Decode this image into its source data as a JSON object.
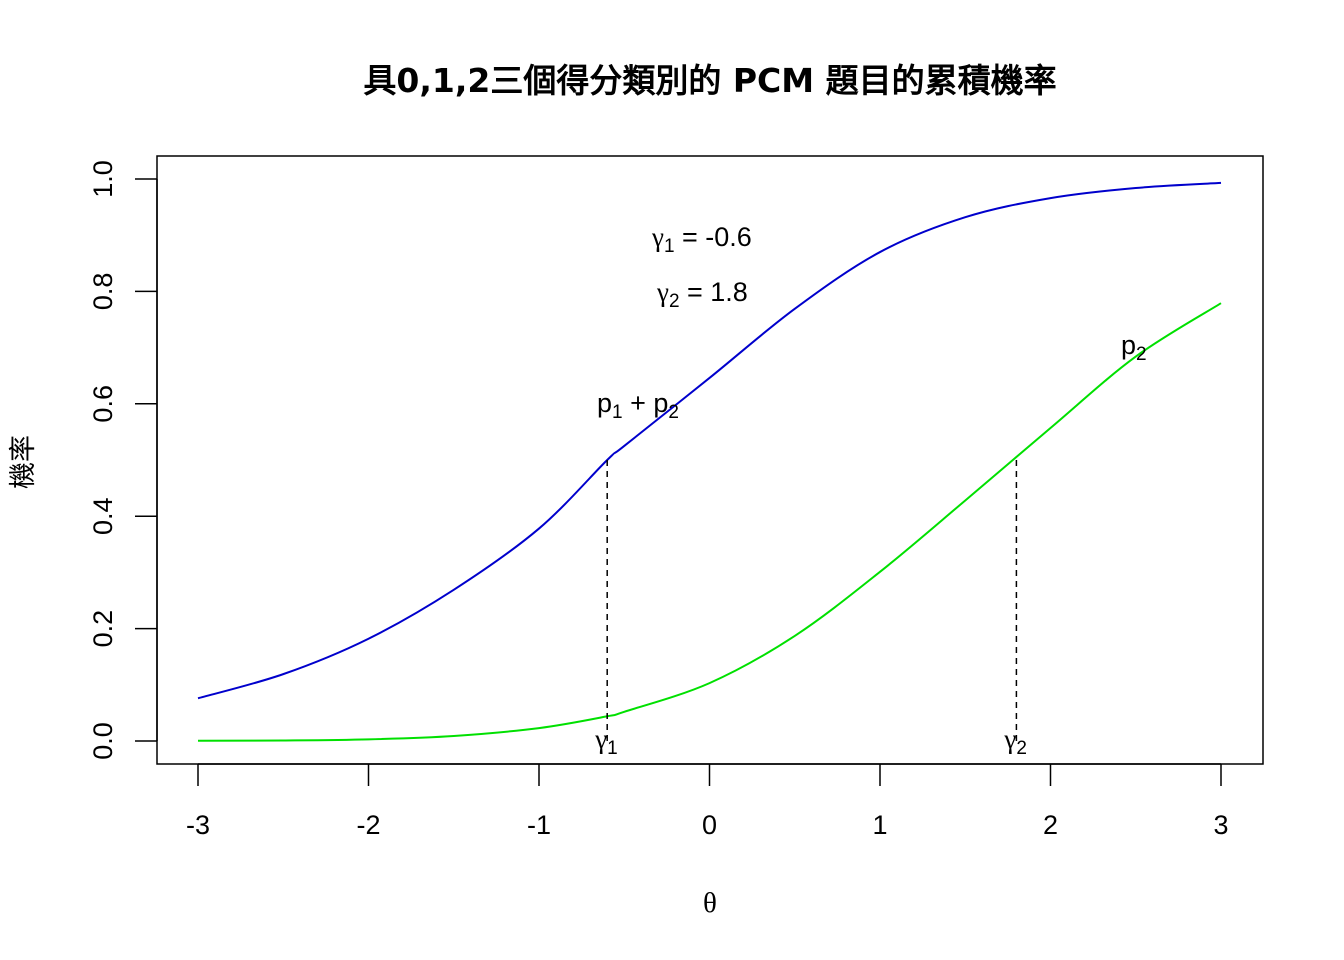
{
  "chart_data": {
    "type": "line",
    "title": "具0,1,2三個得分類別的 PCM 題目的累積機率",
    "xlabel": "θ",
    "ylabel": "機率",
    "xlim": [
      -3,
      3
    ],
    "ylim": [
      0,
      1
    ],
    "x_ticks": [
      "-3",
      "-2",
      "-1",
      "0",
      "1",
      "2",
      "3"
    ],
    "y_ticks": [
      "0.0",
      "0.2",
      "0.4",
      "0.6",
      "0.8",
      "1.0"
    ],
    "grid": false,
    "legend": "none",
    "parameters": {
      "gamma1": -0.6,
      "gamma2": 1.8
    },
    "series": [
      {
        "color": "#0000cc",
        "x": [
          -3.0,
          -2.5,
          -2.0,
          -1.5,
          -1.0,
          -0.6,
          -0.5,
          0.0,
          0.5,
          1.0,
          1.5,
          2.0,
          2.5,
          3.0
        ],
        "values": [
          0.076,
          0.119,
          0.182,
          0.269,
          0.378,
          0.5,
          0.525,
          0.646,
          0.769,
          0.87,
          0.932,
          0.966,
          0.984,
          0.993
        ]
      },
      {
        "color": "#00e000",
        "x": [
          -3.0,
          -2.5,
          -2.0,
          -1.5,
          -1.0,
          -0.6,
          -0.5,
          0.0,
          0.5,
          1.0,
          1.5,
          2.0,
          2.5,
          3.0
        ],
        "values": [
          0.0005,
          0.001,
          0.003,
          0.009,
          0.023,
          0.044,
          0.052,
          0.103,
          0.187,
          0.301,
          0.428,
          0.557,
          0.684,
          0.779
        ]
      }
    ],
    "vlines": [
      {
        "x": -0.6,
        "y_top": 0.5,
        "label": "γ",
        "label_sub": "1"
      },
      {
        "x": 1.8,
        "y_top": 0.5,
        "label": "γ",
        "label_sub": "2"
      }
    ],
    "annotations": {
      "gamma1_text": {
        "sym": "γ",
        "sub": "1",
        "rest": " = -0.6"
      },
      "gamma2_text": {
        "sym": "γ",
        "sub": "2",
        "rest": " = 1.8"
      },
      "cum_label": {
        "p1": "p",
        "sub1": "1",
        "plus": " + ",
        "p2": "p",
        "sub2": "2"
      },
      "p2_label": {
        "p": "p",
        "sub": "2"
      }
    }
  }
}
